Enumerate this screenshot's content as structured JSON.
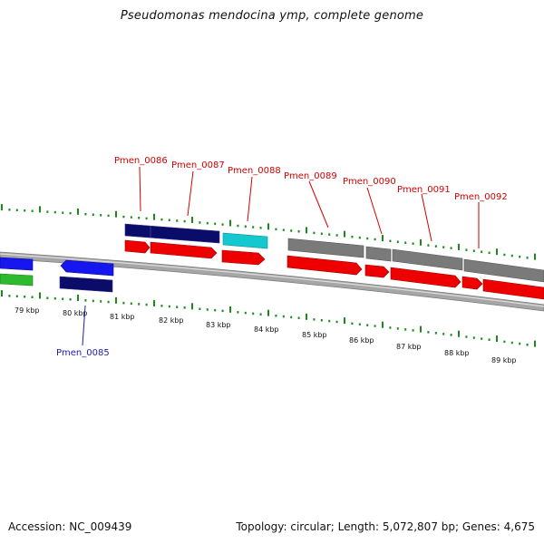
{
  "title": "Pseudomonas mendocina ymp, complete genome",
  "accession_text": "Accession: NC_009439",
  "summary_text": "Topology: circular; Length: 5,072,807 bp; Genes: 4,675",
  "colors": {
    "tick": "#1a8a1a",
    "backbone": "#a9a9a9",
    "label_red": "#d40000",
    "label_blue": "#1c1caa",
    "forward_cds": "#ee0000",
    "forward_gene_dark": "#0b0b6a",
    "forward_gene_cyan": "#14c8d0",
    "forward_gray": "#7a7a7a",
    "reverse_gene": "#1616ee",
    "reverse_cds": "#0b0b6a",
    "green_feature": "#2dbb2d"
  },
  "kbp_labels": [
    "79 kbp",
    "80 kbp",
    "81 kbp",
    "82 kbp",
    "83 kbp",
    "84 kbp",
    "85 kbp",
    "86 kbp",
    "87 kbp",
    "88 kbp",
    "89 kbp"
  ],
  "gene_labels": [
    "Pmen_0085",
    "Pmen_0086",
    "Pmen_0087",
    "Pmen_0088",
    "Pmen_0089",
    "Pmen_0090",
    "Pmen_0091",
    "Pmen_0092"
  ]
}
